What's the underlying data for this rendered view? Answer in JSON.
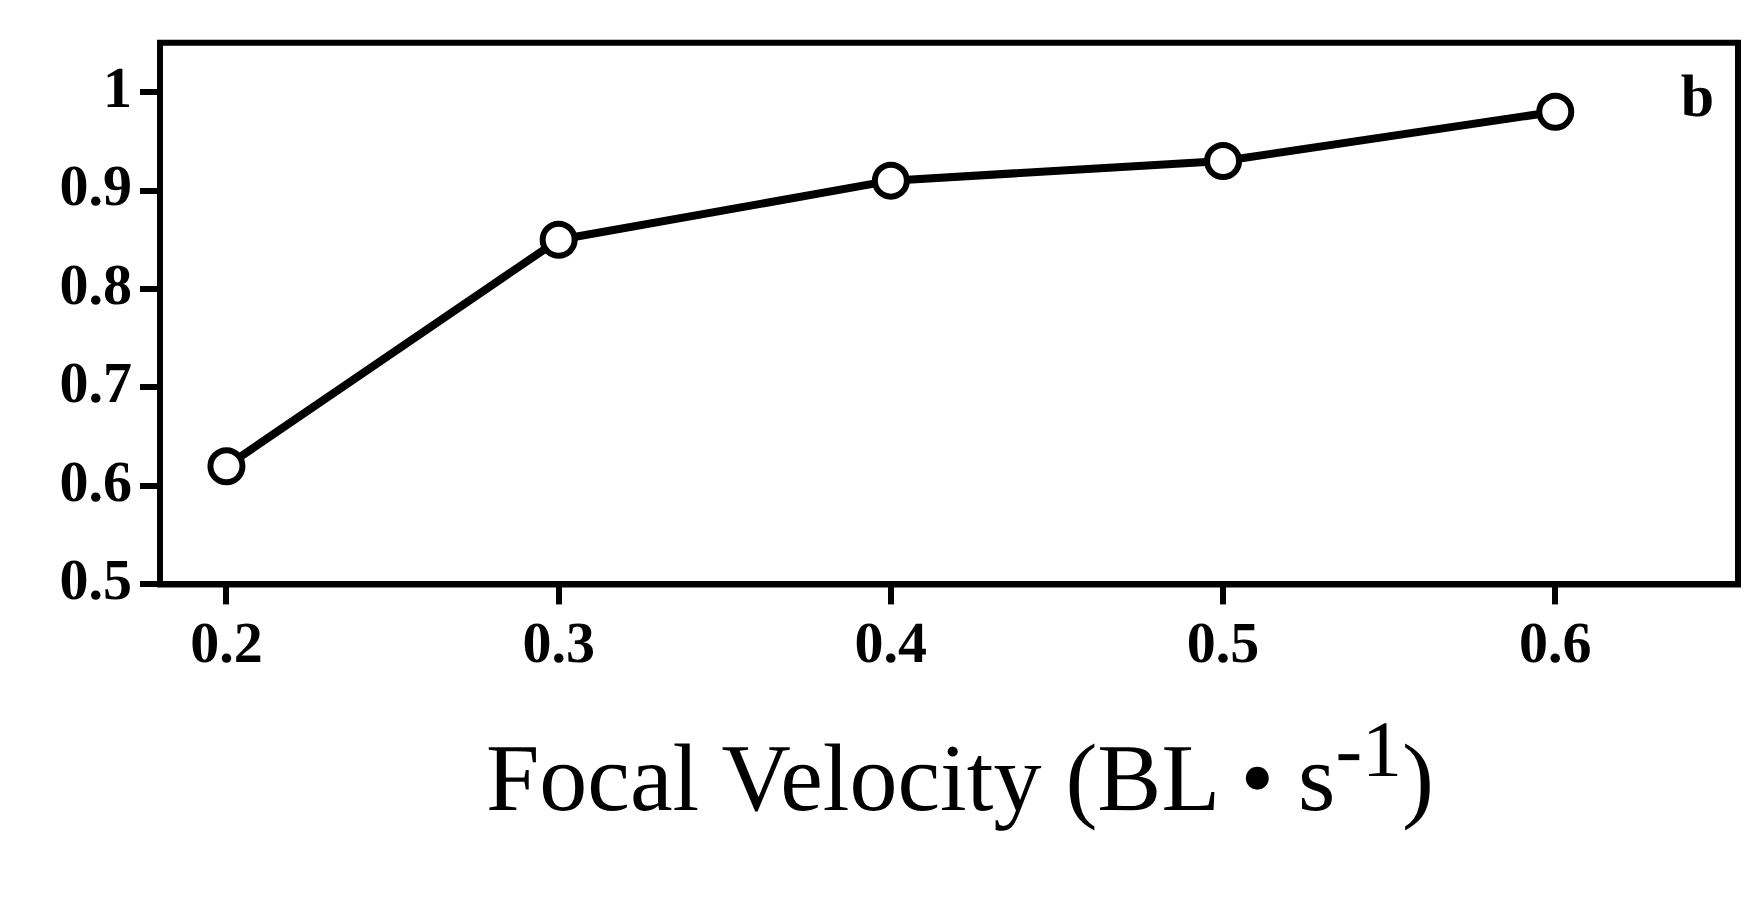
{
  "chart_data": {
    "type": "line",
    "xlabel": "Focal Velocity (BL • s$^{-1}$)",
    "annotations": [
      "b"
    ],
    "x": [
      0.2,
      0.3,
      0.4,
      0.5,
      0.6
    ],
    "series": [
      {
        "color": "#000000",
        "values": [
          0.62,
          0.85,
          0.91,
          0.93,
          0.98
        ]
      }
    ],
    "xlim": [
      0.18,
      0.655
    ],
    "xticks": [
      0.2,
      0.3,
      0.4,
      0.5,
      0.6
    ],
    "ylim": [
      0.5,
      1.05
    ],
    "yticks": [
      0.5,
      0.6,
      0.7,
      0.8,
      0.9,
      1
    ],
    "grid": false,
    "legend": false,
    "marker": "circle",
    "line_style": "solid"
  }
}
